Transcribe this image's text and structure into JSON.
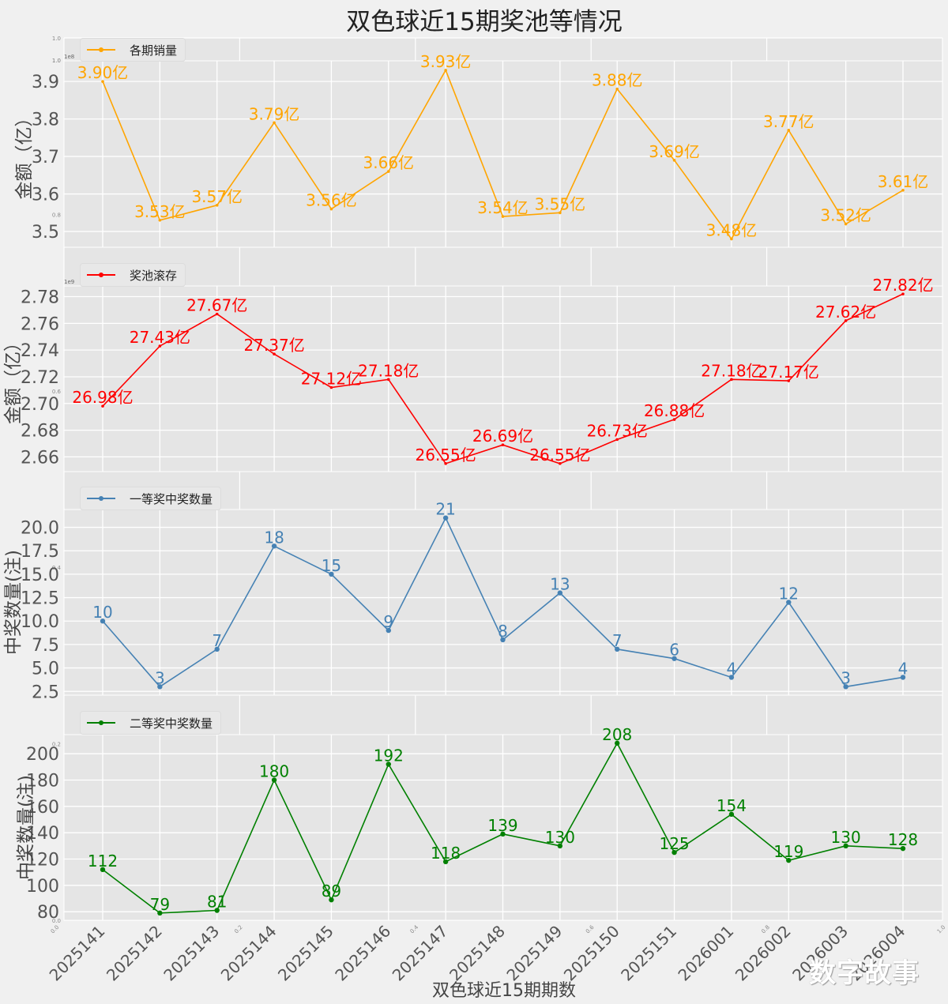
{
  "title": "双色球近15期奖池等情况",
  "xlabel": "双色球近15期期数",
  "watermark": "数字故事",
  "chart_data": [
    {
      "type": "line",
      "legend": "各期销量",
      "color": "#ffa500",
      "ylabel": "金额（亿）",
      "offset_label": "1e8",
      "corner_tick": "1.0",
      "categories": [
        "2025141",
        "2025142",
        "2025143",
        "2025144",
        "2025145",
        "2025146",
        "2025147",
        "2025148",
        "2025149",
        "2025150",
        "2025151",
        "2026001",
        "2026002",
        "2026003",
        "2026004"
      ],
      "values": [
        3.9,
        3.53,
        3.57,
        3.79,
        3.56,
        3.66,
        3.93,
        3.54,
        3.55,
        3.88,
        3.69,
        3.48,
        3.77,
        3.52,
        3.61
      ],
      "data_labels": [
        "3.90亿",
        "3.53亿",
        "3.57亿",
        "3.79亿",
        "3.56亿",
        "3.66亿",
        "3.93亿",
        "3.54亿",
        "3.55亿",
        "3.88亿",
        "3.69亿",
        "3.48亿",
        "3.77亿",
        "3.52亿",
        "3.61亿"
      ],
      "yticks": [
        3.5,
        3.6,
        3.7,
        3.8,
        3.9
      ],
      "ytick_labels": [
        "3.5",
        "3.6",
        "3.7",
        "3.8",
        "3.9"
      ],
      "ylim": [
        3.458,
        3.955
      ],
      "marker": "star",
      "grid": true,
      "legend_position": "top-left"
    },
    {
      "type": "line",
      "legend": "奖池滚存",
      "color": "#ff0000",
      "ylabel": "金额（亿）",
      "offset_label": "1e9",
      "categories": [
        "2025141",
        "2025142",
        "2025143",
        "2025144",
        "2025145",
        "2025146",
        "2025147",
        "2025148",
        "2025149",
        "2025150",
        "2025151",
        "2026001",
        "2026002",
        "2026003",
        "2026004"
      ],
      "values": [
        26.98,
        27.43,
        27.67,
        27.37,
        27.12,
        27.18,
        26.55,
        26.69,
        26.55,
        26.73,
        26.88,
        27.18,
        27.17,
        27.62,
        27.82
      ],
      "data_labels": [
        "26.98亿",
        "27.43亿",
        "27.67亿",
        "27.37亿",
        "27.12亿",
        "27.18亿",
        "26.55亿",
        "26.69亿",
        "26.55亿",
        "26.73亿",
        "26.88亿",
        "27.18亿",
        "27.17亿",
        "27.62亿",
        "27.82亿"
      ],
      "yticks": [
        2.66,
        2.68,
        2.7,
        2.72,
        2.74,
        2.76,
        2.78
      ],
      "ytick_labels": [
        "2.66",
        "2.68",
        "2.70",
        "2.72",
        "2.74",
        "2.76",
        "2.78"
      ],
      "ylim": [
        2.649,
        2.788
      ],
      "value_scale": 0.1,
      "marker": "star",
      "grid": true,
      "legend_position": "top-left"
    },
    {
      "type": "line",
      "legend": "一等奖中奖数量",
      "color": "#4682b4",
      "ylabel": "中奖数量(注)",
      "categories": [
        "2025141",
        "2025142",
        "2025143",
        "2025144",
        "2025145",
        "2025146",
        "2025147",
        "2025148",
        "2025149",
        "2025150",
        "2025151",
        "2026001",
        "2026002",
        "2026003",
        "2026004"
      ],
      "values": [
        10,
        3,
        7,
        18,
        15,
        9,
        21,
        8,
        13,
        7,
        6,
        4,
        12,
        3,
        4
      ],
      "data_labels": [
        "10",
        "3",
        "7",
        "18",
        "15",
        "9",
        "21",
        "8",
        "13",
        "7",
        "6",
        "4",
        "12",
        "3",
        "4"
      ],
      "yticks": [
        2.5,
        5.0,
        7.5,
        10.0,
        12.5,
        15.0,
        17.5,
        20.0
      ],
      "ytick_labels": [
        "2.5",
        "5.0",
        "7.5",
        "10.0",
        "12.5",
        "15.0",
        "17.5",
        "20.0"
      ],
      "ylim": [
        2.1,
        21.9
      ],
      "marker": "circle",
      "grid": true,
      "legend_position": "top-left"
    },
    {
      "type": "line",
      "legend": "二等奖中奖数量",
      "color": "#008000",
      "ylabel": "中奖数量(注)",
      "categories": [
        "2025141",
        "2025142",
        "2025143",
        "2025144",
        "2025145",
        "2025146",
        "2025147",
        "2025148",
        "2025149",
        "2025150",
        "2025151",
        "2026001",
        "2026002",
        "2026003",
        "2026004"
      ],
      "values": [
        112,
        79,
        81,
        180,
        89,
        192,
        118,
        139,
        130,
        208,
        125,
        154,
        119,
        130,
        128
      ],
      "data_labels": [
        "112",
        "79",
        "81",
        "180",
        "89",
        "192",
        "118",
        "139",
        "130",
        "208",
        "125",
        "154",
        "119",
        "130",
        "128"
      ],
      "yticks": [
        80,
        100,
        120,
        140,
        160,
        180,
        200
      ],
      "ytick_labels": [
        "80",
        "100",
        "120",
        "140",
        "160",
        "180",
        "200"
      ],
      "ylim": [
        73.5,
        214.5
      ],
      "marker": "circle",
      "grid": true,
      "legend_position": "top-left"
    }
  ],
  "background_axes": {
    "xticks": [
      "0.0",
      "0.2",
      "0.4",
      "0.6",
      "0.8",
      "1.0"
    ],
    "yticks": [
      "0.0",
      "0.2",
      "0.4",
      "0.6",
      "0.8",
      "1.0"
    ]
  }
}
